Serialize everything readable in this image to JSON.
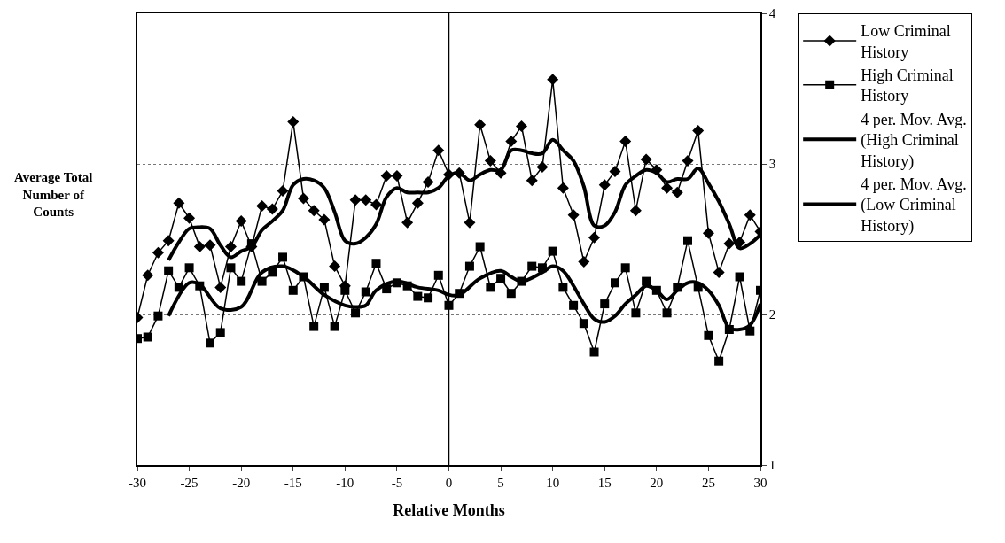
{
  "chart_data": {
    "type": "line",
    "xlabel": "Relative Months",
    "ylabel": "Average Total Number of Counts",
    "x": [
      -30,
      -29,
      -28,
      -27,
      -26,
      -25,
      -24,
      -23,
      -22,
      -21,
      -20,
      -19,
      -18,
      -17,
      -16,
      -15,
      -14,
      -13,
      -12,
      -11,
      -10,
      -9,
      -8,
      -7,
      -6,
      -5,
      -4,
      -3,
      -2,
      -1,
      0,
      1,
      2,
      3,
      4,
      5,
      6,
      7,
      8,
      9,
      10,
      11,
      12,
      13,
      14,
      15,
      16,
      17,
      18,
      19,
      20,
      21,
      22,
      23,
      24,
      25,
      26,
      27,
      28,
      29,
      30
    ],
    "series": [
      {
        "name": "Low Criminal History",
        "color": "#000000",
        "marker": "diamond",
        "values": [
          1.98,
          2.26,
          2.41,
          2.49,
          2.74,
          2.64,
          2.45,
          2.46,
          2.18,
          2.45,
          2.62,
          2.45,
          2.72,
          2.7,
          2.82,
          3.28,
          2.77,
          2.69,
          2.63,
          2.32,
          2.19,
          2.76,
          2.76,
          2.73,
          2.92,
          2.92,
          2.61,
          2.74,
          2.88,
          3.09,
          2.93,
          2.94,
          2.61,
          3.26,
          3.02,
          2.94,
          3.15,
          3.25,
          2.89,
          2.98,
          3.56,
          2.84,
          2.66,
          2.35,
          2.51,
          2.86,
          2.95,
          3.15,
          2.69,
          3.03,
          2.96,
          2.84,
          2.81,
          3.02,
          3.22,
          2.54,
          2.28,
          2.47,
          2.48,
          2.66,
          2.55
        ]
      },
      {
        "name": "High Criminal History",
        "color": "#000000",
        "marker": "square",
        "values": [
          1.84,
          1.85,
          1.99,
          2.29,
          2.18,
          2.31,
          2.19,
          1.81,
          1.88,
          2.31,
          2.22,
          2.47,
          2.22,
          2.28,
          2.38,
          2.16,
          2.25,
          1.92,
          2.18,
          1.92,
          2.16,
          2.01,
          2.15,
          2.34,
          2.17,
          2.21,
          2.19,
          2.12,
          2.11,
          2.26,
          2.06,
          2.14,
          2.32,
          2.45,
          2.18,
          2.24,
          2.14,
          2.22,
          2.32,
          2.31,
          2.42,
          2.18,
          2.06,
          1.94,
          1.75,
          2.07,
          2.21,
          2.31,
          2.01,
          2.22,
          2.16,
          2.01,
          2.18,
          2.49,
          2.18,
          1.86,
          1.69,
          1.9,
          2.25,
          1.89,
          2.16
        ]
      },
      {
        "name": "4 per. Mov. Avg. (High Criminal History)",
        "color": "#000000",
        "marker": "none",
        "x": [
          -27,
          -25,
          -24,
          -22,
          -20,
          -18,
          -16,
          -14,
          -12,
          -10,
          -9,
          -8,
          -7,
          -5,
          -3,
          -1,
          0,
          1,
          3,
          5,
          6,
          7,
          9,
          10,
          11,
          12,
          13,
          14,
          15,
          16,
          17,
          18,
          19,
          20,
          21,
          22,
          23,
          24,
          25,
          26,
          27,
          28,
          29,
          30
        ],
        "values": [
          1.99,
          2.21,
          2.2,
          2.04,
          2.05,
          2.28,
          2.32,
          2.25,
          2.13,
          2.06,
          2.05,
          2.06,
          2.16,
          2.22,
          2.18,
          2.16,
          2.13,
          2.13,
          2.24,
          2.29,
          2.25,
          2.22,
          2.28,
          2.32,
          2.29,
          2.19,
          2.07,
          1.97,
          1.95,
          1.99,
          2.07,
          2.13,
          2.19,
          2.16,
          2.1,
          2.16,
          2.21,
          2.21,
          2.16,
          2.06,
          1.91,
          1.9,
          1.93,
          2.07
        ]
      },
      {
        "name": "4 per. Mov. Avg. (Low Criminal History)",
        "color": "#000000",
        "marker": "none",
        "x": [
          -27,
          -26,
          -25,
          -24,
          -23,
          -22,
          -21,
          -20,
          -19,
          -18,
          -17,
          -16,
          -15,
          -14,
          -13,
          -12,
          -11,
          -10,
          -9,
          -8,
          -7,
          -6,
          -5,
          -4,
          -3,
          -2,
          -1,
          0,
          1,
          2,
          3,
          4,
          5,
          6,
          7,
          8,
          9,
          10,
          11,
          12,
          13,
          14,
          15,
          16,
          17,
          18,
          19,
          20,
          21,
          22,
          23,
          24,
          25,
          26,
          27,
          28,
          29,
          30
        ],
        "values": [
          2.36,
          2.48,
          2.57,
          2.58,
          2.57,
          2.46,
          2.38,
          2.42,
          2.45,
          2.56,
          2.62,
          2.69,
          2.86,
          2.9,
          2.89,
          2.84,
          2.68,
          2.49,
          2.47,
          2.51,
          2.6,
          2.78,
          2.84,
          2.81,
          2.81,
          2.81,
          2.84,
          2.92,
          2.94,
          2.89,
          2.93,
          2.96,
          2.96,
          3.09,
          3.09,
          3.07,
          3.07,
          3.16,
          3.09,
          3.02,
          2.85,
          2.59,
          2.59,
          2.68,
          2.86,
          2.92,
          2.96,
          2.94,
          2.88,
          2.9,
          2.9,
          2.97,
          2.87,
          2.75,
          2.6,
          2.44,
          2.47,
          2.53
        ]
      }
    ],
    "xlim": [
      -30,
      30
    ],
    "xticks": [
      -30,
      -25,
      -20,
      -15,
      -10,
      -5,
      0,
      5,
      10,
      15,
      20,
      25,
      30
    ],
    "ylim": [
      1,
      4
    ],
    "yticks": [
      1,
      2,
      3,
      4
    ],
    "grid": "y",
    "legend": "right",
    "ref_lines": [
      {
        "axis": "x",
        "value": 0
      }
    ]
  }
}
